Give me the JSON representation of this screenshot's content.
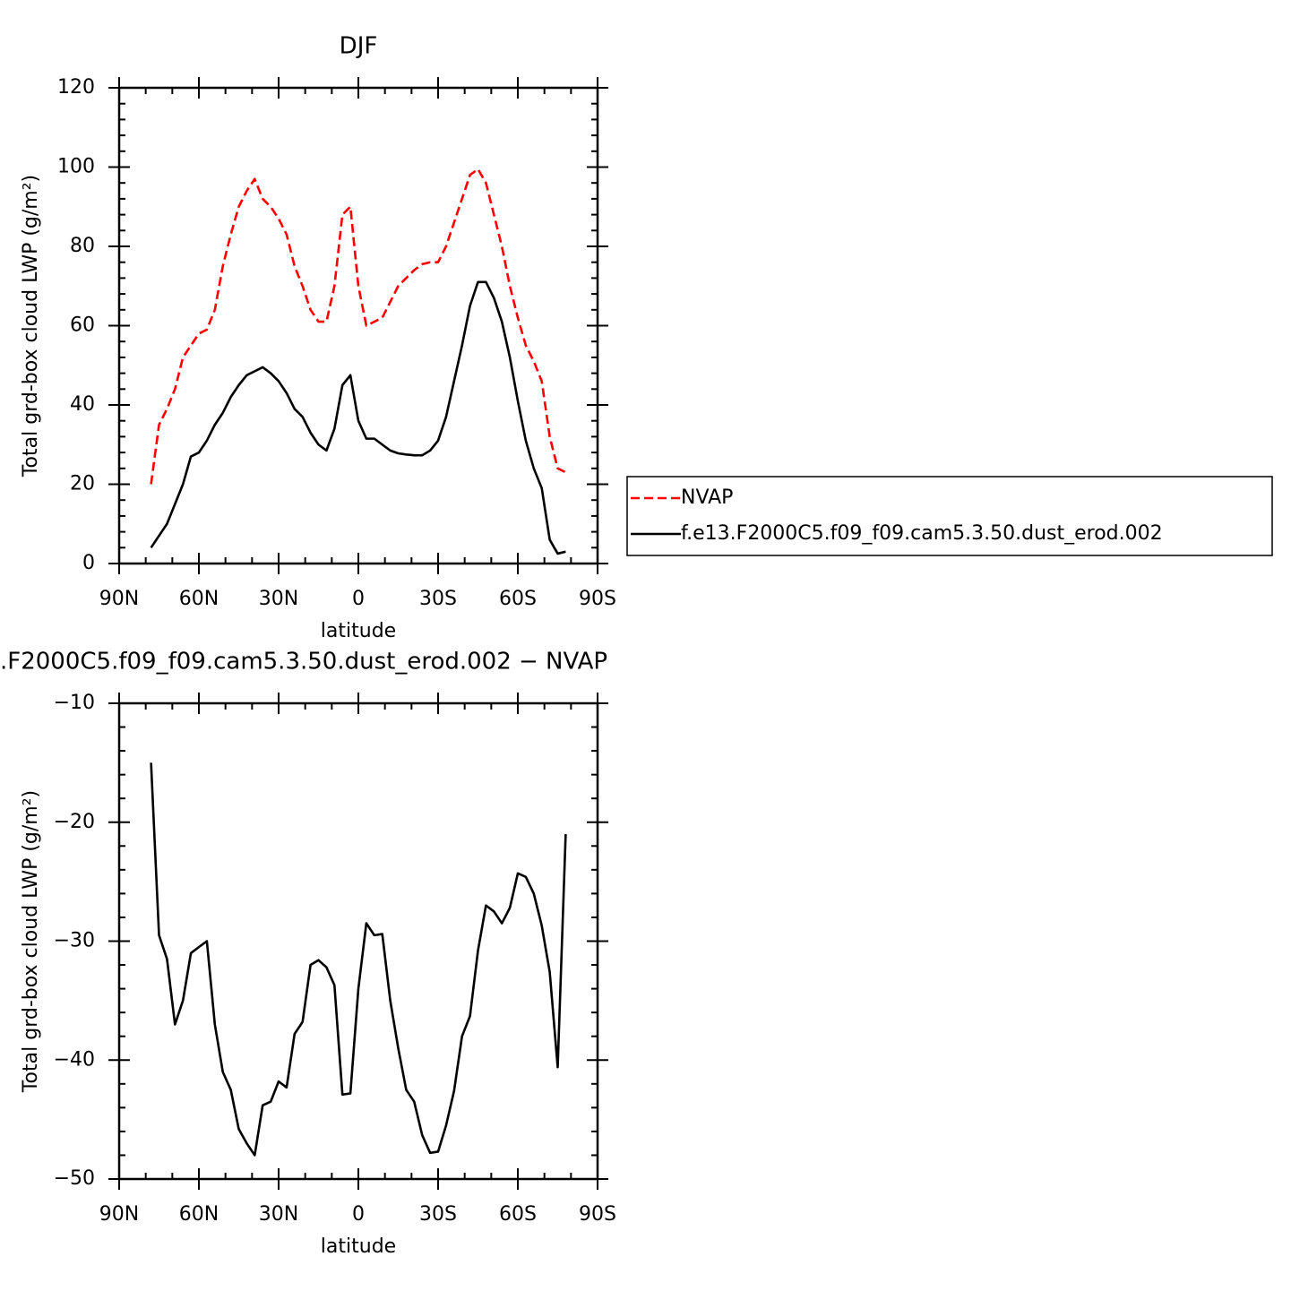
{
  "chart_data": [
    {
      "type": "line",
      "title": "DJF",
      "xlabel": "latitude",
      "ylabel": "Total grd-box cloud LWP (g/m²)",
      "x": [
        78,
        75,
        72,
        69,
        66,
        63,
        60,
        57,
        54,
        51,
        48,
        45,
        42,
        39,
        36,
        33,
        30,
        27,
        24,
        21,
        18,
        15,
        12,
        9,
        6,
        3,
        0,
        -3,
        -6,
        -9,
        -12,
        -15,
        -18,
        -21,
        -24,
        -27,
        -30,
        -33,
        -36,
        -39,
        -42,
        -45,
        -48,
        -51,
        -54,
        -57,
        -60,
        -63,
        -66,
        -69,
        -72,
        -75,
        -78
      ],
      "series": [
        {
          "name": "NVAP",
          "color": "#ff0000",
          "dashed": true,
          "values": [
            20,
            35,
            39,
            44,
            52,
            55,
            58,
            59,
            64,
            75,
            83,
            90,
            94,
            97,
            92,
            90,
            87,
            83,
            75,
            70,
            64,
            61,
            61,
            70,
            88,
            90,
            70,
            60,
            61,
            62,
            66,
            70,
            72,
            74,
            75.5,
            76,
            76,
            80,
            86,
            92,
            98,
            99.5,
            96,
            88,
            80,
            70,
            62,
            55,
            51,
            46,
            32,
            24,
            23
          ]
        },
        {
          "name": "f.e13.F2000C5.f09_f09.cam5.3.50.dust_erod.002",
          "color": "#000000",
          "dashed": false,
          "values": [
            4,
            7,
            10,
            15,
            20,
            27,
            28,
            31,
            35,
            38,
            42,
            45,
            47.5,
            48.5,
            49.5,
            48,
            46,
            43,
            39,
            37,
            33,
            30,
            28.5,
            34,
            45,
            47.5,
            36,
            31.5,
            31.5,
            30,
            28.5,
            27.8,
            27.5,
            27.3,
            27.3,
            28.5,
            31,
            37,
            46,
            55,
            65,
            71,
            71,
            67,
            61,
            52,
            41,
            31,
            24,
            19,
            6,
            2.5,
            3
          ]
        }
      ],
      "xlim": [
        90,
        -90
      ],
      "xticks": [
        {
          "value": 90,
          "label": "90N"
        },
        {
          "value": 60,
          "label": "60N"
        },
        {
          "value": 30,
          "label": "30N"
        },
        0,
        {
          "value": -30,
          "label": "30S"
        },
        {
          "value": -60,
          "label": "60S"
        },
        {
          "value": -90,
          "label": "90S"
        }
      ],
      "ylim": [
        0,
        120
      ],
      "yticks": [
        0,
        20,
        40,
        60,
        80,
        100,
        120
      ],
      "legend": "right"
    },
    {
      "type": "line",
      "title": ".F2000C5.f09_f09.cam5.3.50.dust_erod.002 − NVAP",
      "xlabel": "latitude",
      "ylabel": "Total grd-box cloud LWP (g/m²)",
      "x": [
        78,
        75,
        72,
        69,
        66,
        63,
        60,
        57,
        54,
        51,
        48,
        45,
        42,
        39,
        36,
        33,
        30,
        27,
        24,
        21,
        18,
        15,
        12,
        9,
        6,
        3,
        0,
        -3,
        -6,
        -9,
        -12,
        -15,
        -18,
        -21,
        -24,
        -27,
        -30,
        -33,
        -36,
        -39,
        -42,
        -45,
        -48,
        -51,
        -54,
        -57,
        -60,
        -63,
        -66,
        -69,
        -72,
        -75,
        -78
      ],
      "values": [
        -15,
        -29.5,
        -31.5,
        -37,
        -35,
        -31,
        -30.5,
        -30,
        -37,
        -41,
        -42.5,
        -45.8,
        -47,
        -48,
        -43.8,
        -43.5,
        -41.8,
        -42.3,
        -37.8,
        -36.8,
        -32,
        -31.6,
        -32.2,
        -33.7,
        -42.9,
        -42.8,
        -34,
        -28.5,
        -29.5,
        -29.4,
        -35,
        -39,
        -42.5,
        -43.5,
        -46.3,
        -47.8,
        -47.7,
        -45.5,
        -42.6,
        -38,
        -36.3,
        -30.8,
        -27,
        -27.5,
        -28.5,
        -27.2,
        -24.3,
        -24.6,
        -26,
        -28.7,
        -32.6,
        -40.6,
        -21
      ],
      "color": "#000000",
      "xlim": [
        90,
        -90
      ],
      "xticks": [
        {
          "value": 90,
          "label": "90N"
        },
        {
          "value": 60,
          "label": "60N"
        },
        {
          "value": 30,
          "label": "30N"
        },
        0,
        {
          "value": -30,
          "label": "30S"
        },
        {
          "value": -60,
          "label": "60S"
        },
        {
          "value": -90,
          "label": "90S"
        }
      ],
      "ylim": [
        -50,
        -10
      ],
      "yticks": [
        {
          "value": -50,
          "label": "−50"
        },
        {
          "value": -40,
          "label": "−40"
        },
        {
          "value": -30,
          "label": "−30"
        },
        {
          "value": -20,
          "label": "−20"
        },
        {
          "value": -10,
          "label": "−10"
        }
      ]
    }
  ]
}
